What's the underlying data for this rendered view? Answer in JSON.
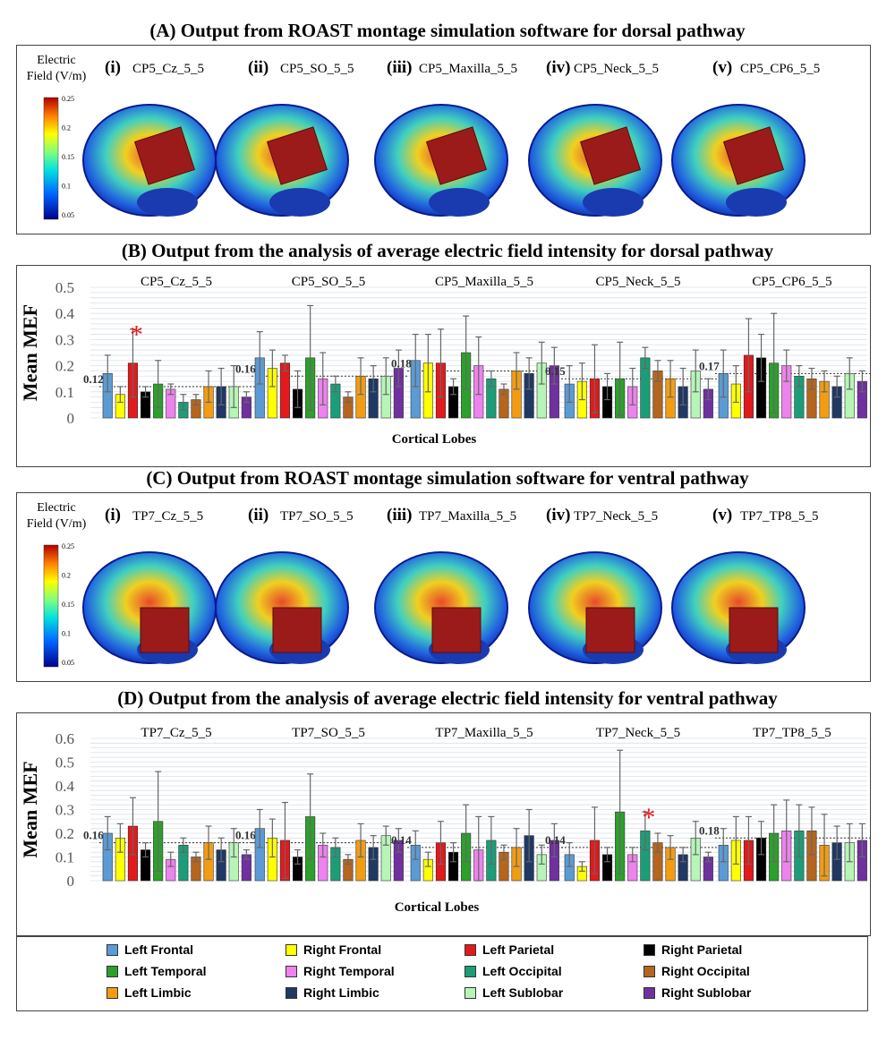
{
  "titles": {
    "A": "(A) Output from ROAST montage simulation software for dorsal pathway",
    "B": "(B) Output from the analysis of average electric field intensity for dorsal pathway",
    "C": "(C) Output from ROAST montage simulation software for ventral pathway",
    "D": "(D) Output from the analysis of average electric field intensity for ventral pathway"
  },
  "colorbar": {
    "label_line1": "Electric",
    "label_line2": "Field (V/m)",
    "ticks": [
      "0.25",
      "0.2",
      "0.15",
      "0.1",
      "0.05"
    ]
  },
  "dorsal_montages": [
    {
      "num": "(i)",
      "name": "CP5_Cz_5_5"
    },
    {
      "num": "(ii)",
      "name": "CP5_SO_5_5"
    },
    {
      "num": "(iii)",
      "name": "CP5_Maxilla_5_5"
    },
    {
      "num": "(iv)",
      "name": "CP5_Neck_5_5"
    },
    {
      "num": "(v)",
      "name": "CP5_CP6_5_5"
    }
  ],
  "ventral_montages": [
    {
      "num": "(i)",
      "name": "TP7_Cz_5_5"
    },
    {
      "num": "(ii)",
      "name": "TP7_SO_5_5"
    },
    {
      "num": "(iii)",
      "name": "TP7_Maxilla_5_5"
    },
    {
      "num": "(iv)",
      "name": "TP7_Neck_5_5"
    },
    {
      "num": "(v)",
      "name": "TP7_TP8_5_5"
    }
  ],
  "legend": [
    {
      "label": "Left Frontal",
      "color": "#5b9bd5"
    },
    {
      "label": "Right Frontal",
      "color": "#ffff00"
    },
    {
      "label": "Left Parietal",
      "color": "#e31a1c"
    },
    {
      "label": "Right Parietal",
      "color": "#000000"
    },
    {
      "label": "Left Temporal",
      "color": "#2ca02c"
    },
    {
      "label": "Right Temporal",
      "color": "#ee82ee"
    },
    {
      "label": "Left Occipital",
      "color": "#1b9e77"
    },
    {
      "label": "Right Occipital",
      "color": "#b5651d"
    },
    {
      "label": "Left Limbic",
      "color": "#f39c12"
    },
    {
      "label": "Right Limbic",
      "color": "#1f3864"
    },
    {
      "label": "Left Sublobar",
      "color": "#b7f5b7"
    },
    {
      "label": "Right Sublobar",
      "color": "#7030a0"
    }
  ],
  "chart_data": [
    {
      "type": "bar",
      "ylabel": "Mean MEF",
      "xlabel": "Cortical Lobes",
      "ylim": [
        0,
        0.5
      ],
      "yticks": [
        "0",
        "0.1",
        "0.2",
        "0.3",
        "0.4",
        "0.5"
      ],
      "groups": [
        {
          "name": "CP5_Cz_5_5",
          "mean_label": "0.12",
          "mean": 0.12,
          "star": true,
          "star_index": 2,
          "values": [
            0.17,
            0.09,
            0.21,
            0.1,
            0.13,
            0.11,
            0.06,
            0.07,
            0.12,
            0.12,
            0.12,
            0.08
          ],
          "errors": [
            0.07,
            0.03,
            0.13,
            0.02,
            0.09,
            0.02,
            0.03,
            0.02,
            0.06,
            0.07,
            0.08,
            0.02
          ]
        },
        {
          "name": "CP5_SO_5_5",
          "mean_label": "0.16",
          "mean": 0.16,
          "star": false,
          "values": [
            0.23,
            0.19,
            0.21,
            0.11,
            0.23,
            0.15,
            0.13,
            0.08,
            0.16,
            0.15,
            0.16,
            0.19
          ],
          "errors": [
            0.1,
            0.07,
            0.03,
            0.07,
            0.2,
            0.1,
            0.03,
            0.02,
            0.07,
            0.05,
            0.07,
            0.07
          ]
        },
        {
          "name": "CP5_Maxilla_5_5",
          "mean_label": "0.18",
          "mean": 0.18,
          "star": false,
          "values": [
            0.22,
            0.21,
            0.21,
            0.12,
            0.25,
            0.2,
            0.15,
            0.11,
            0.18,
            0.17,
            0.21,
            0.2
          ],
          "errors": [
            0.1,
            0.11,
            0.13,
            0.03,
            0.14,
            0.11,
            0.03,
            0.02,
            0.07,
            0.06,
            0.08,
            0.07
          ]
        },
        {
          "name": "CP5_Neck_5_5",
          "mean_label": "0.15",
          "mean": 0.15,
          "star": false,
          "values": [
            0.13,
            0.14,
            0.15,
            0.12,
            0.15,
            0.12,
            0.23,
            0.18,
            0.15,
            0.12,
            0.18,
            0.11
          ],
          "errors": [
            0.07,
            0.07,
            0.13,
            0.05,
            0.14,
            0.07,
            0.04,
            0.04,
            0.07,
            0.07,
            0.08,
            0.04
          ]
        },
        {
          "name": "CP5_CP6_5_5",
          "mean_label": "0.17",
          "mean": 0.17,
          "star": false,
          "values": [
            0.17,
            0.13,
            0.24,
            0.23,
            0.21,
            0.2,
            0.16,
            0.15,
            0.14,
            0.12,
            0.17,
            0.14
          ],
          "errors": [
            0.09,
            0.07,
            0.14,
            0.09,
            0.19,
            0.06,
            0.04,
            0.04,
            0.04,
            0.04,
            0.06,
            0.04
          ]
        }
      ]
    },
    {
      "type": "bar",
      "ylabel": "Mean MEF",
      "xlabel": "Cortical Lobes",
      "ylim": [
        0,
        0.6
      ],
      "yticks": [
        "0",
        "0.1",
        "0.2",
        "0.3",
        "0.4",
        "0.5",
        "0.6"
      ],
      "groups": [
        {
          "name": "TP7_Cz_5_5",
          "mean_label": "0.16",
          "mean": 0.16,
          "star": false,
          "values": [
            0.2,
            0.18,
            0.23,
            0.13,
            0.25,
            0.09,
            0.15,
            0.1,
            0.16,
            0.13,
            0.16,
            0.11
          ],
          "errors": [
            0.07,
            0.06,
            0.12,
            0.03,
            0.21,
            0.03,
            0.03,
            0.02,
            0.07,
            0.05,
            0.06,
            0.02
          ]
        },
        {
          "name": "TP7_SO_5_5",
          "mean_label": "0.16",
          "mean": 0.16,
          "star": false,
          "values": [
            0.22,
            0.18,
            0.17,
            0.1,
            0.27,
            0.15,
            0.14,
            0.09,
            0.17,
            0.14,
            0.19,
            0.17
          ],
          "errors": [
            0.08,
            0.08,
            0.16,
            0.03,
            0.18,
            0.05,
            0.04,
            0.02,
            0.07,
            0.05,
            0.04,
            0.05
          ]
        },
        {
          "name": "TP7_Maxilla_5_5",
          "mean_label": "0.14",
          "mean": 0.14,
          "star": false,
          "values": [
            0.15,
            0.09,
            0.16,
            0.12,
            0.2,
            0.13,
            0.17,
            0.12,
            0.14,
            0.19,
            0.11,
            0.17
          ],
          "errors": [
            0.06,
            0.03,
            0.09,
            0.04,
            0.12,
            0.14,
            0.1,
            0.03,
            0.08,
            0.11,
            0.04,
            0.07
          ]
        },
        {
          "name": "TP7_Neck_5_5",
          "mean_label": "0.14",
          "mean": 0.14,
          "star": true,
          "star_index": 6,
          "values": [
            0.11,
            0.06,
            0.17,
            0.11,
            0.29,
            0.11,
            0.21,
            0.16,
            0.14,
            0.11,
            0.18,
            0.1
          ],
          "errors": [
            0.05,
            0.02,
            0.14,
            0.03,
            0.26,
            0.03,
            0.08,
            0.04,
            0.05,
            0.03,
            0.07,
            0.02
          ]
        },
        {
          "name": "TP7_TP8_5_5",
          "mean_label": "0.18",
          "mean": 0.18,
          "star": false,
          "values": [
            0.15,
            0.17,
            0.17,
            0.18,
            0.2,
            0.21,
            0.21,
            0.21,
            0.15,
            0.16,
            0.16,
            0.17
          ],
          "errors": [
            0.07,
            0.1,
            0.1,
            0.07,
            0.12,
            0.13,
            0.11,
            0.1,
            0.13,
            0.07,
            0.08,
            0.07
          ]
        }
      ]
    }
  ]
}
